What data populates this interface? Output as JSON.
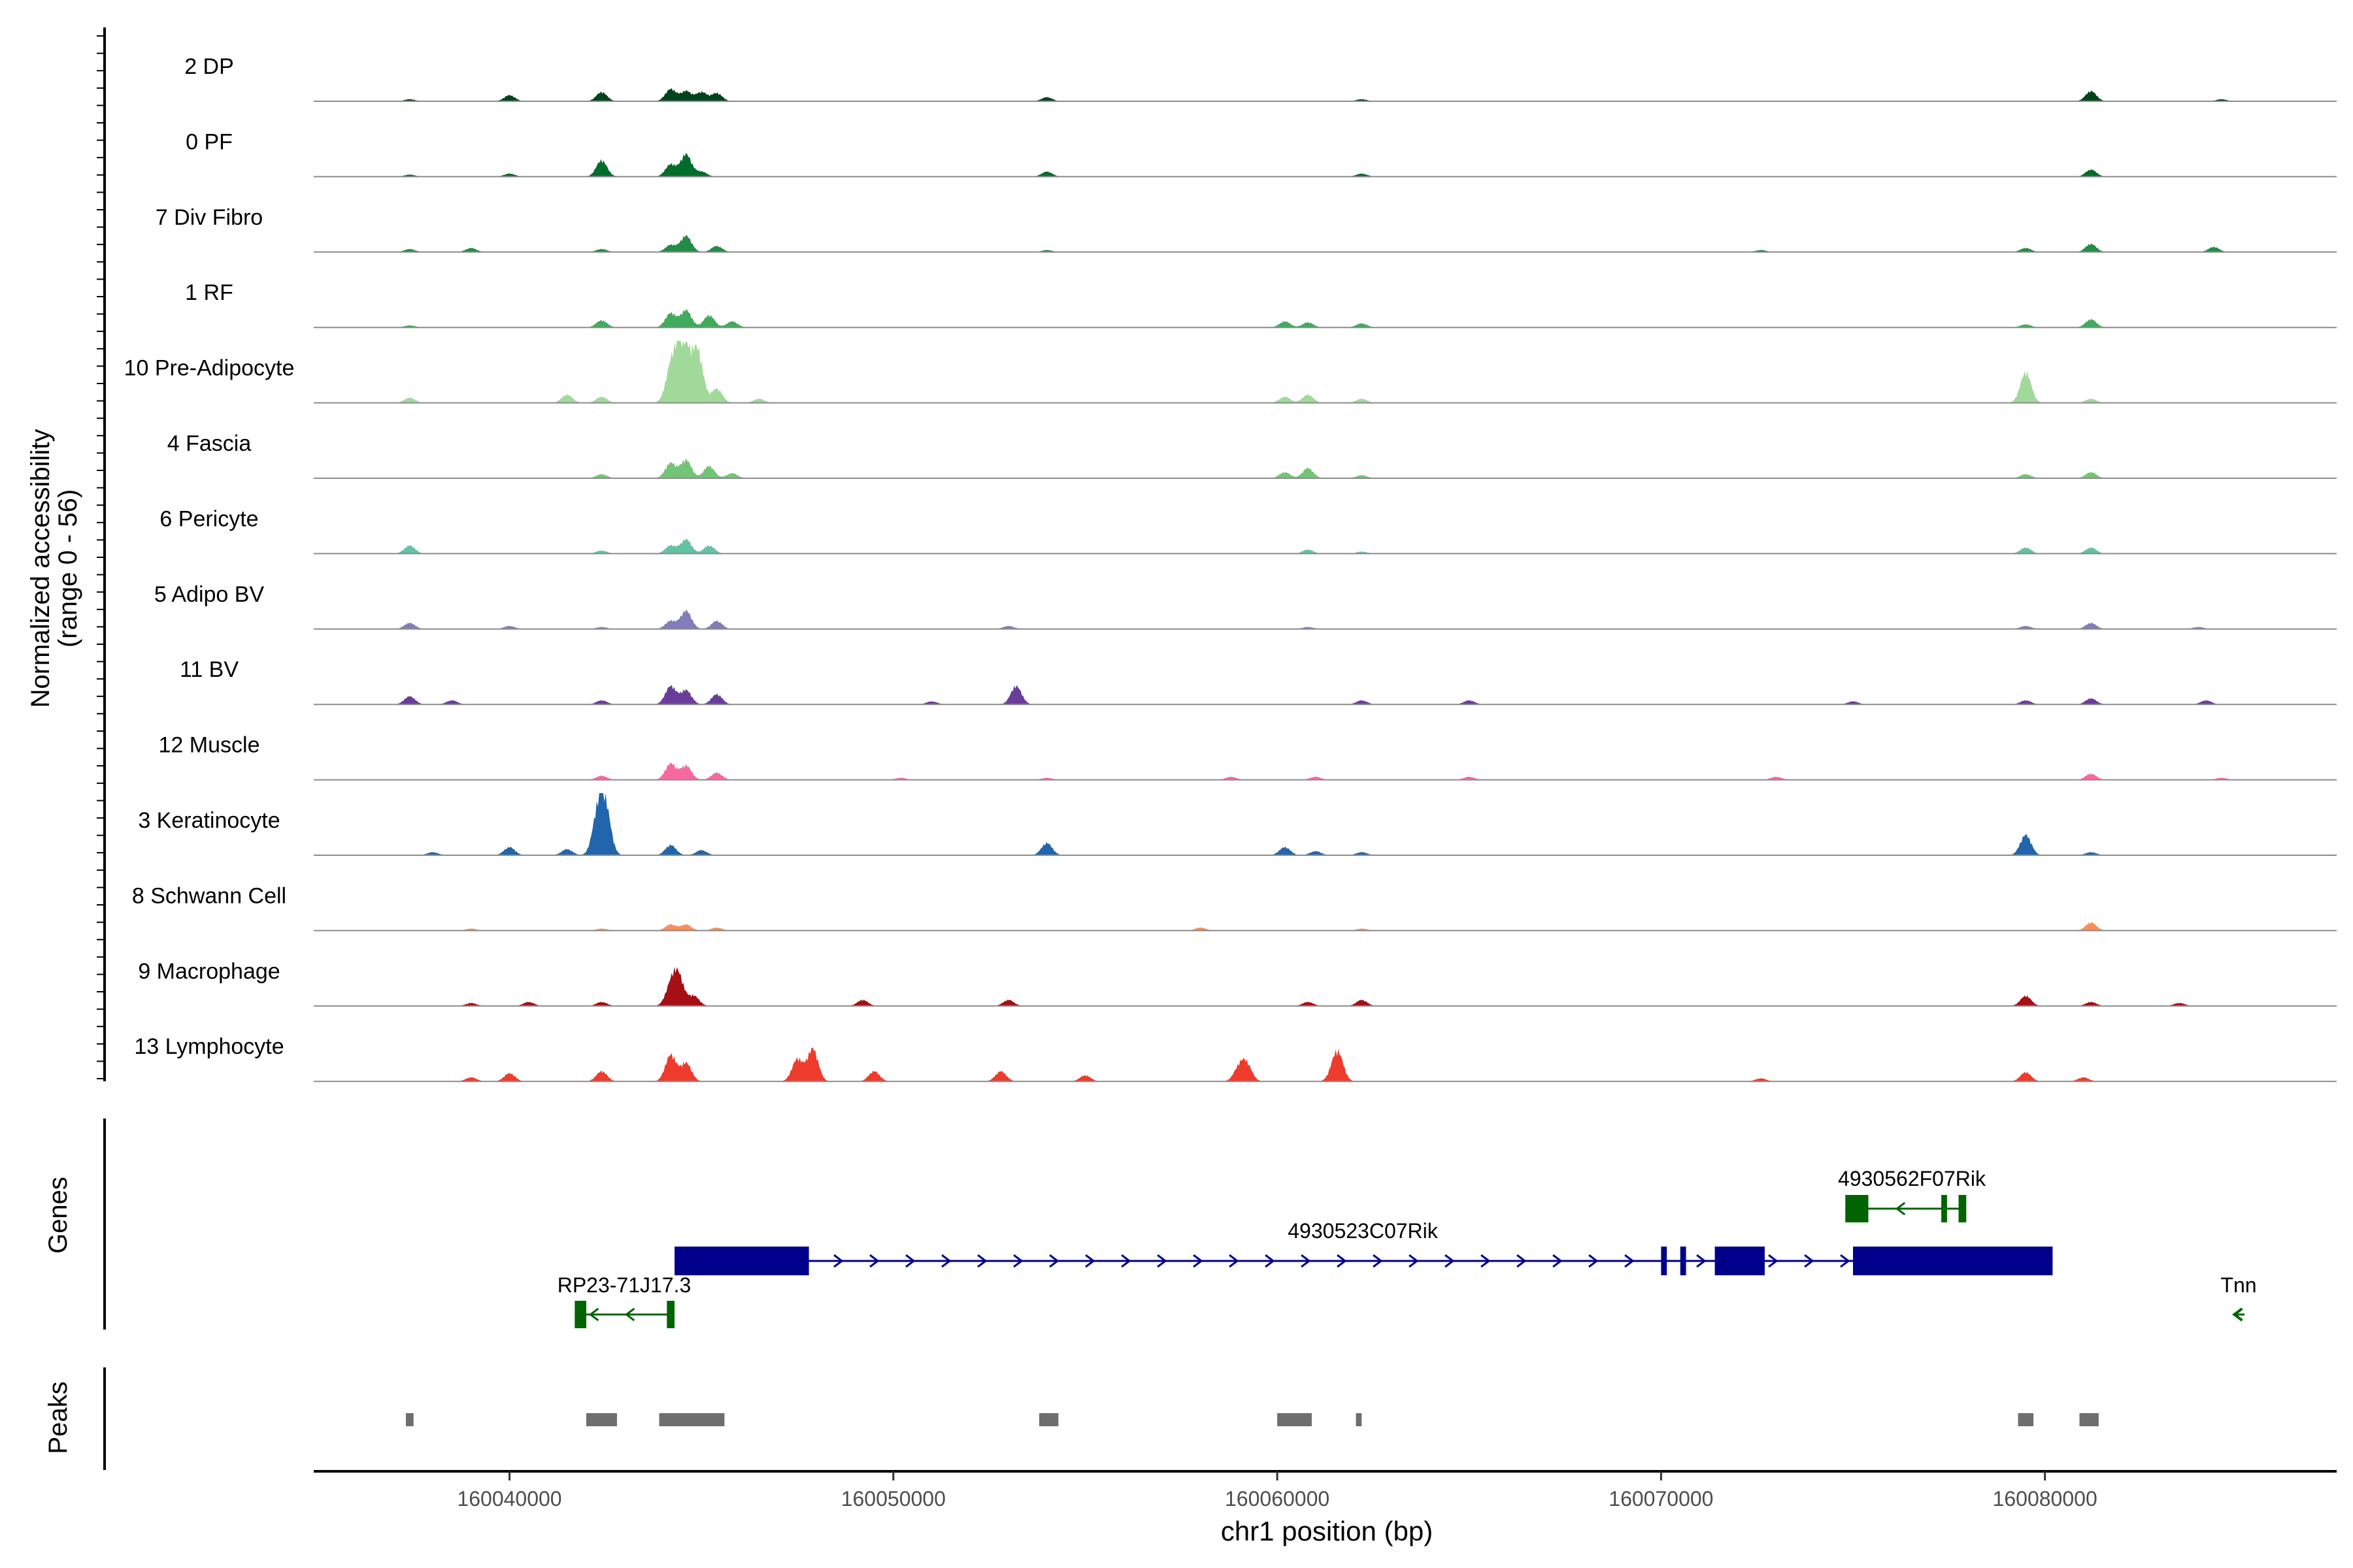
{
  "chart_data": {
    "type": "area",
    "chromosome": "chr1",
    "xlabel": "chr1 position (bp)",
    "ylabel": "Normalized accessibility",
    "ylabel_range": "(range 0 - 56)",
    "ylim": [
      0,
      56
    ],
    "xlim": [
      160034900,
      160087600
    ],
    "x_ticks": [
      160040000,
      160050000,
      160060000,
      160070000,
      160080000
    ],
    "x_tick_labels": [
      "160040000",
      "160050000",
      "160060000",
      "160070000",
      "160080000"
    ],
    "genes_label": "Genes",
    "peaks_label": "Peaks",
    "series": [
      {
        "name": "2 DP",
        "color": "#00441b",
        "x": [
          160037400,
          160040000,
          160042400,
          160044200,
          160044600,
          160045000,
          160045400,
          160054000,
          160062200,
          160081200,
          160084600
        ],
        "y": [
          2,
          6,
          9,
          12,
          10,
          9,
          8,
          4,
          2,
          10,
          2
        ]
      },
      {
        "name": "0 PF",
        "color": "#006d2c",
        "x": [
          160037400,
          160040000,
          160042400,
          160044200,
          160044600,
          160045000,
          160054000,
          160062200,
          160081200
        ],
        "y": [
          2,
          3,
          16,
          12,
          22,
          5,
          5,
          3,
          7
        ]
      },
      {
        "name": "7 Div Fibro",
        "color": "#238b45",
        "x": [
          160037400,
          160039000,
          160042400,
          160044200,
          160044600,
          160045400,
          160054000,
          160072600,
          160079500,
          160081200,
          160084400
        ],
        "y": [
          3,
          4,
          3,
          7,
          16,
          6,
          2,
          2,
          4,
          8,
          5
        ]
      },
      {
        "name": "1 RF",
        "color": "#41ab5d",
        "x": [
          160037400,
          160042400,
          160044200,
          160044600,
          160045200,
          160045800,
          160060200,
          160060800,
          160062200,
          160079500,
          160081200
        ],
        "y": [
          2,
          7,
          14,
          17,
          12,
          6,
          6,
          5,
          4,
          3,
          8
        ]
      },
      {
        "name": "10 Pre-Adipocyte",
        "color": "#a1d99b",
        "x": [
          160037400,
          160041500,
          160042400,
          160044200,
          160044400,
          160044600,
          160044900,
          160045400,
          160046500,
          160060200,
          160060800,
          160062200,
          160079500,
          160081200
        ],
        "y": [
          5,
          8,
          6,
          30,
          36,
          42,
          50,
          14,
          4,
          6,
          8,
          4,
          30,
          4
        ]
      },
      {
        "name": "4 Fascia",
        "color": "#74c476",
        "x": [
          160042400,
          160044200,
          160044600,
          160045200,
          160045800,
          160060200,
          160060800,
          160062200,
          160079500,
          160081200
        ],
        "y": [
          4,
          15,
          18,
          12,
          5,
          6,
          10,
          3,
          4,
          6
        ]
      },
      {
        "name": "6 Pericyte",
        "color": "#66c2a4",
        "x": [
          160037400,
          160042400,
          160044200,
          160044600,
          160045200,
          160060800,
          160062200,
          160079500,
          160081200
        ],
        "y": [
          8,
          3,
          8,
          14,
          8,
          4,
          2,
          6,
          6
        ]
      },
      {
        "name": "5 Adipo BV",
        "color": "#807dba",
        "x": [
          160037400,
          160040000,
          160042400,
          160044200,
          160044600,
          160045400,
          160053000,
          160060800,
          160079500,
          160081200,
          160084000
        ],
        "y": [
          6,
          3,
          2,
          8,
          18,
          8,
          3,
          2,
          3,
          6,
          2
        ]
      },
      {
        "name": "11 BV",
        "color": "#6a3d9a",
        "x": [
          160037400,
          160038500,
          160042400,
          160044200,
          160044600,
          160045400,
          160051000,
          160053200,
          160062200,
          160065000,
          160075000,
          160079500,
          160081200,
          160084200
        ],
        "y": [
          8,
          4,
          4,
          18,
          14,
          10,
          3,
          18,
          4,
          4,
          3,
          4,
          6,
          4
        ]
      },
      {
        "name": "12 Muscle",
        "color": "#f768a1",
        "x": [
          160042400,
          160044200,
          160044600,
          160045400,
          160050200,
          160054000,
          160058800,
          160061000,
          160065000,
          160073000,
          160081200,
          160084600
        ],
        "y": [
          4,
          16,
          14,
          7,
          2,
          2,
          3,
          3,
          3,
          3,
          6,
          2
        ]
      },
      {
        "name": "3 Keratinocyte",
        "color": "#2166ac",
        "x": [
          160038000,
          160040000,
          160041500,
          160042300,
          160042500,
          160044200,
          160045000,
          160054000,
          160060200,
          160061000,
          160062200,
          160079500,
          160081200
        ],
        "y": [
          3,
          8,
          6,
          38,
          44,
          10,
          5,
          12,
          8,
          4,
          3,
          20,
          3
        ]
      },
      {
        "name": "8 Schwann Cell",
        "color": "#fc8d59",
        "x": [
          160039000,
          160042400,
          160044200,
          160044600,
          160045400,
          160058000,
          160062200,
          160081200
        ],
        "y": [
          2,
          2,
          6,
          6,
          3,
          3,
          2,
          8
        ]
      },
      {
        "name": "9 Macrophage",
        "color": "#a50f15",
        "x": [
          160039000,
          160040500,
          160042400,
          160044200,
          160044400,
          160044800,
          160049200,
          160053000,
          160060800,
          160062200,
          160079500,
          160081200,
          160083500
        ],
        "y": [
          3,
          4,
          4,
          18,
          28,
          10,
          6,
          6,
          4,
          6,
          10,
          4,
          3
        ]
      },
      {
        "name": "13 Lymphocyte",
        "color": "#ef3b2c",
        "x": [
          160039000,
          160040000,
          160042400,
          160044200,
          160044600,
          160047500,
          160047900,
          160049500,
          160052800,
          160055000,
          160059000,
          160059200,
          160061500,
          160061600,
          160072600,
          160079500,
          160081000
        ],
        "y": [
          4,
          8,
          10,
          26,
          18,
          22,
          32,
          10,
          10,
          6,
          12,
          16,
          12,
          20,
          3,
          9,
          4
        ]
      }
    ],
    "genes": [
      {
        "name": "4930523C07Rik",
        "strand": "+",
        "color": "#00008b",
        "start": 160044300,
        "end": 160080200,
        "exons": [
          [
            160044300,
            160047800
          ],
          [
            160070000,
            160070150
          ],
          [
            160070500,
            160070650
          ],
          [
            160071400,
            160072700
          ],
          [
            160075000,
            160080200
          ]
        ]
      },
      {
        "name": "4930562F07Rik",
        "strand": "-",
        "color": "#006400",
        "start": 160074800,
        "end": 160077900,
        "exons": [
          [
            160074800,
            160075400
          ],
          [
            160077300,
            160077450
          ],
          [
            160077750,
            160077950
          ]
        ]
      },
      {
        "name": "RP23-71J17.3",
        "strand": "-",
        "color": "#006400",
        "start": 160041700,
        "end": 160044300,
        "exons": [
          [
            160041700,
            160042000
          ],
          [
            160044100,
            160044300
          ]
        ]
      },
      {
        "name": "Tnn",
        "strand": "-",
        "color": "#006400",
        "start": 160084900,
        "end": 160085200,
        "exons": []
      }
    ],
    "peaks": [
      [
        160037300,
        160037500
      ],
      [
        160042000,
        160042800
      ],
      [
        160043900,
        160045600
      ],
      [
        160053800,
        160054300
      ],
      [
        160060000,
        160060900
      ],
      [
        160062050,
        160062200
      ],
      [
        160079300,
        160079700
      ],
      [
        160080900,
        160081400
      ]
    ],
    "peak_color": "#6e6e6e"
  }
}
